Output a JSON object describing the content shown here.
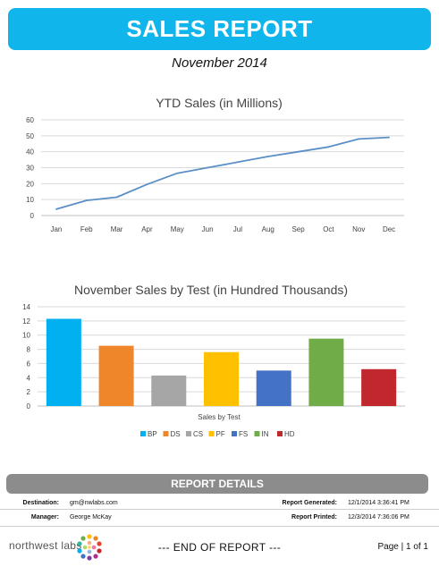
{
  "header": {
    "title": "SALES REPORT",
    "subtitle": "November 2014"
  },
  "chart_data": [
    {
      "type": "line",
      "title": "YTD Sales (in Millions)",
      "categories": [
        "Jan",
        "Feb",
        "Mar",
        "Apr",
        "May",
        "Jun",
        "Jul",
        "Aug",
        "Sep",
        "Oct",
        "Nov",
        "Dec"
      ],
      "values": [
        4,
        9.5,
        11.5,
        19.5,
        26.5,
        30,
        33.5,
        37,
        40,
        43,
        48,
        49
      ],
      "ylim": [
        0,
        60
      ],
      "yticks": [
        0,
        10,
        20,
        30,
        40,
        50,
        60
      ],
      "grid": true,
      "line_color": "#5b8fc7"
    },
    {
      "type": "bar",
      "title": "November Sales by Test (in Hundred Thousands)",
      "xlabel": "Sales by Test",
      "categories": [
        "BP",
        "DS",
        "CS",
        "PF",
        "FS",
        "IN",
        "HD"
      ],
      "values": [
        12.3,
        8.5,
        4.3,
        7.6,
        5.0,
        9.5,
        5.2
      ],
      "colors": [
        "#00b0f0",
        "#f0862a",
        "#a6a6a6",
        "#ffc000",
        "#4472c4",
        "#70ad47",
        "#c0282d"
      ],
      "ylim": [
        0,
        14
      ],
      "yticks": [
        0,
        2,
        4,
        6,
        8,
        10,
        12,
        14
      ],
      "grid": true,
      "legend": "bottom"
    }
  ],
  "details": {
    "title": "REPORT DETAILS",
    "destination_label": "Destination:",
    "destination_value": "gm@nwlabs.com",
    "manager_label": "Manager:",
    "manager_value": "George McKay",
    "generated_label": "Report Generated:",
    "generated_value": "12/1/2014 3:36:41 PM",
    "printed_label": "Report Printed:",
    "printed_value": "12/3/2014 7:36:06 PM"
  },
  "footer": {
    "logo_text": "northwest labs",
    "end_text": "--- END OF REPORT ---",
    "page_text": "Page  |  1 of 1"
  },
  "colors": {
    "banner": "#10b5ec",
    "details_bar": "#8c8c8c"
  }
}
